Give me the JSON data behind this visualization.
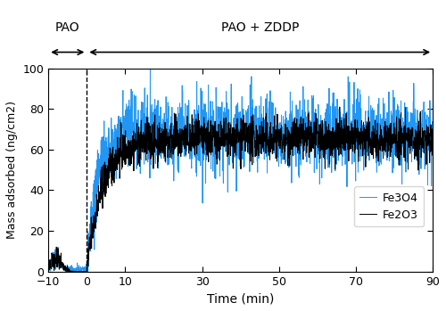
{
  "xlabel": "Time (min)",
  "ylabel": "Mass adsorbed (ng/cm2)",
  "xlim": [
    -10,
    90
  ],
  "ylim": [
    0,
    100
  ],
  "xticks": [
    -10,
    0,
    10,
    30,
    50,
    70,
    90
  ],
  "yticks": [
    0,
    20,
    40,
    60,
    80,
    100
  ],
  "dashed_x": 0,
  "pao_label": "PAO",
  "pao_zddp_label": "PAO + ZDDP",
  "legend_fe2o3": "Fe2O3",
  "legend_fe3o4": "Fe3O4",
  "fe2o3_color": "#000000",
  "fe3o4_color": "#2196F3",
  "line_width": 0.7,
  "seed": 42,
  "pre_points": 150,
  "post_points": 1800,
  "fe2o3_plateau": 65,
  "fe2o3_rise_tau": 4,
  "fe2o3_noise_std": 5,
  "fe3o4_plateau": 68,
  "fe3o4_rise_tau": 2.5,
  "fe3o4_noise_std": 9
}
